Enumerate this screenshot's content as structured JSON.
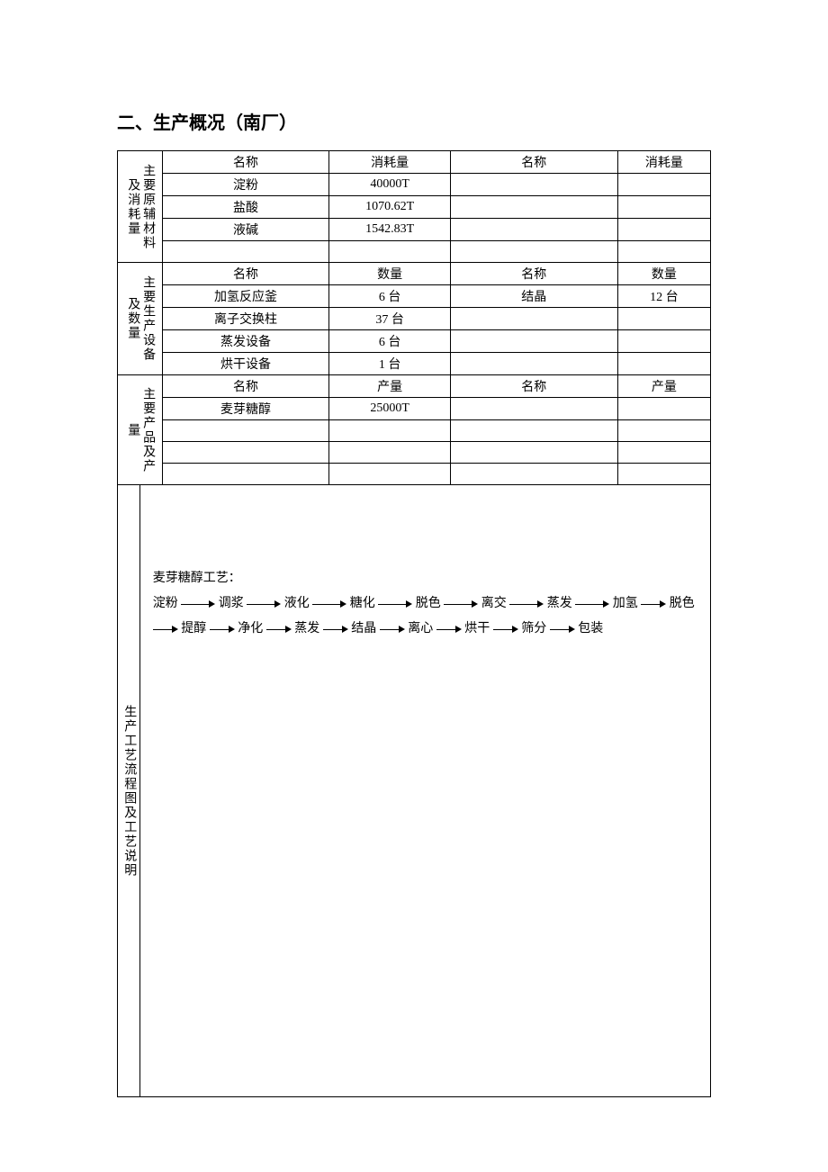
{
  "title": "二、生产概况（南厂）",
  "colors": {
    "border": "#000000",
    "text": "#000000",
    "bg": "#ffffff"
  },
  "font": {
    "body_family": "SimSun",
    "heading_family": "SimHei",
    "body_size_pt": 11,
    "heading_size_pt": 15
  },
  "section1": {
    "vlabel": "主要原辅材料及消耗量",
    "header": [
      "名称",
      "消耗量",
      "名称",
      "消耗量"
    ],
    "rows": [
      [
        "淀粉",
        "40000T",
        "",
        ""
      ],
      [
        "盐酸",
        "1070.62T",
        "",
        ""
      ],
      [
        "液碱",
        "1542.83T",
        "",
        ""
      ],
      [
        "",
        "",
        "",
        ""
      ]
    ]
  },
  "section2": {
    "vlabel": "主要生产设备及数量",
    "header": [
      "名称",
      "数量",
      "名称",
      "数量"
    ],
    "rows": [
      [
        "加氢反应釜",
        "6 台",
        "结晶",
        "12 台"
      ],
      [
        "离子交换柱",
        "37 台",
        "",
        ""
      ],
      [
        "蒸发设备",
        "6 台",
        "",
        ""
      ],
      [
        "烘干设备",
        "1 台",
        "",
        ""
      ]
    ]
  },
  "section3": {
    "vlabel": "主要产品及产量",
    "header": [
      "名称",
      "产量",
      "名称",
      "产量"
    ],
    "rows": [
      [
        "麦芽糖醇",
        "25000T",
        "",
        ""
      ],
      [
        "",
        "",
        "",
        ""
      ],
      [
        "",
        "",
        "",
        ""
      ],
      [
        "",
        "",
        "",
        ""
      ]
    ]
  },
  "section4": {
    "vlabel": "生产工艺流程图及工艺说明",
    "process_title": "麦芽糖醇工艺：",
    "steps": [
      "淀粉",
      "调浆",
      "液化",
      "糖化",
      "脱色",
      "离交",
      "蒸发",
      "加氢",
      "脱色",
      "提醇",
      "净化",
      "蒸发",
      "结晶",
      "离心",
      "烘干",
      "筛分",
      "包装"
    ]
  }
}
